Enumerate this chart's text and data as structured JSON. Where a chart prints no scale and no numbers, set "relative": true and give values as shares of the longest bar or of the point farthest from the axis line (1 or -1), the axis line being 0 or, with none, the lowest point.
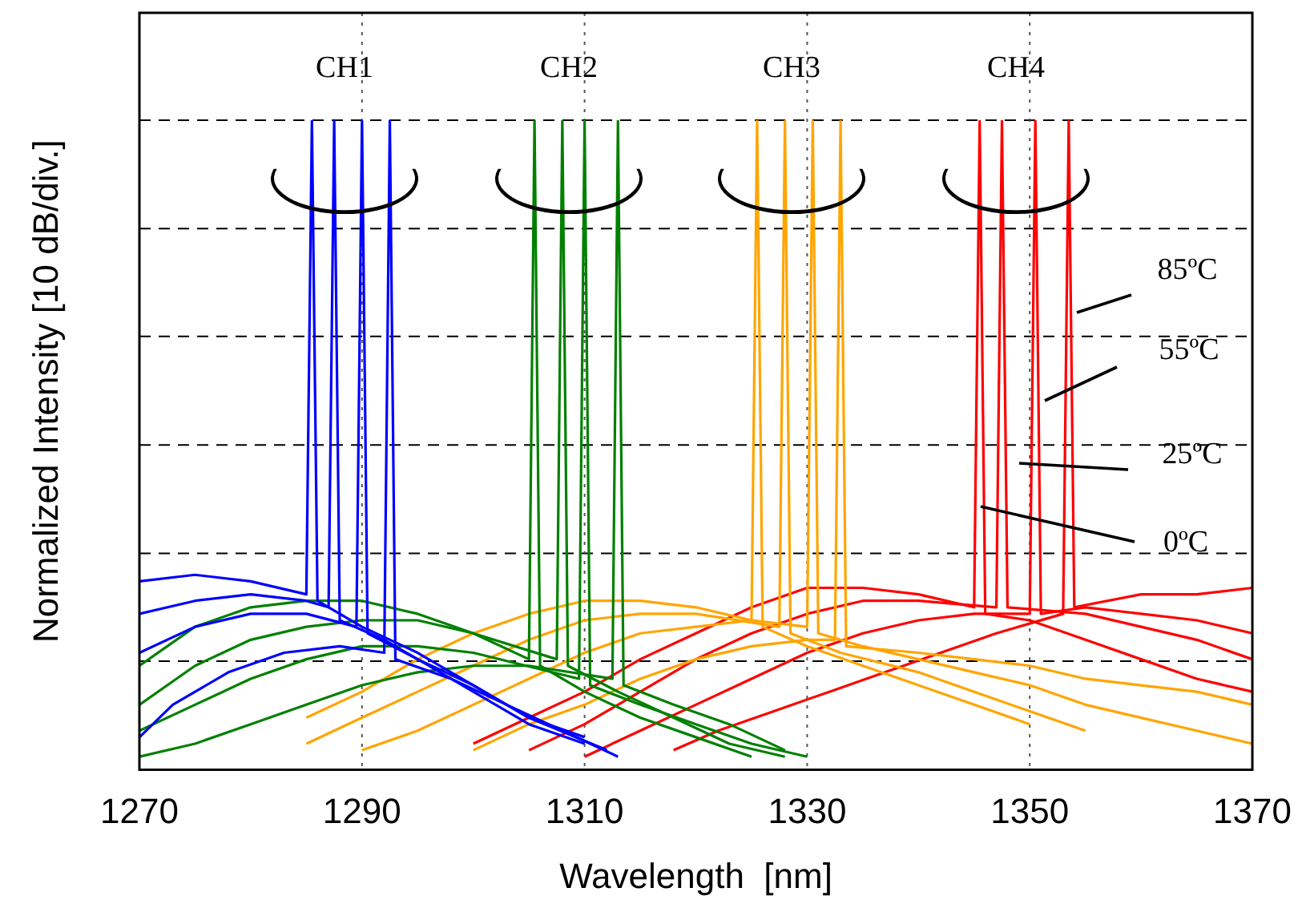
{
  "chart_data": {
    "type": "line",
    "relative": true,
    "xlabel": "Wavelength  [nm]",
    "ylabel": "Normalized Intensity [10 dB/div.]",
    "xlim": [
      1270,
      1370
    ],
    "xticks": [
      1270,
      1290,
      1310,
      1330,
      1350,
      1370
    ],
    "grid": "x",
    "legend": false,
    "marker": "none",
    "line_style": "solid",
    "ref_lines": [
      {
        "axis": "y",
        "value": 0.167,
        "line_style": "dashed",
        "color": "#000000"
      },
      {
        "axis": "y",
        "value": 0.333,
        "line_style": "dashed",
        "color": "#000000"
      },
      {
        "axis": "y",
        "value": 0.5,
        "line_style": "dashed",
        "color": "#000000"
      },
      {
        "axis": "y",
        "value": 0.667,
        "line_style": "dashed",
        "color": "#000000"
      },
      {
        "axis": "y",
        "value": 0.833,
        "line_style": "dashed",
        "color": "#000000"
      },
      {
        "axis": "y",
        "value": 1,
        "line_style": "dashed",
        "color": "#000000"
      }
    ],
    "annotations": [
      "CH1",
      "CH2",
      "CH3",
      "CH4",
      "85ºC",
      "55ºC",
      "25ºC",
      "0ºC"
    ],
    "series": [
      {
        "color": "#0000ff",
        "x": [
          1270,
          1275,
          1280,
          1285,
          1285.5,
          1286,
          1290,
          1295,
          1300,
          1305,
          1310
        ],
        "values": [
          0.29,
          0.3,
          0.29,
          0.27,
          1,
          0.26,
          0.22,
          0.18,
          0.13,
          0.08,
          0.05
        ]
      },
      {
        "color": "#0000ff",
        "x": [
          1270,
          1275,
          1280,
          1285,
          1287,
          1287.5,
          1288,
          1292,
          1296,
          1300,
          1305,
          1310
        ],
        "values": [
          0.24,
          0.26,
          0.27,
          0.26,
          0.25,
          1,
          0.23,
          0.2,
          0.16,
          0.12,
          0.07,
          0.04
        ]
      },
      {
        "color": "#0000ff",
        "x": [
          1270,
          1275,
          1280,
          1285,
          1289.5,
          1290,
          1290.5,
          1295,
          1300,
          1305,
          1312
        ],
        "values": [
          0.18,
          0.22,
          0.24,
          0.24,
          0.22,
          1,
          0.21,
          0.17,
          0.13,
          0.08,
          0.03
        ]
      },
      {
        "color": "#0000ff",
        "x": [
          1270,
          1273,
          1278,
          1283,
          1288,
          1292,
          1292.5,
          1293,
          1298,
          1303,
          1308,
          1313
        ],
        "values": [
          0.05,
          0.1,
          0.15,
          0.18,
          0.19,
          0.18,
          1,
          0.17,
          0.14,
          0.1,
          0.06,
          0.02
        ]
      },
      {
        "color": "#008000",
        "x": [
          1270,
          1275,
          1280,
          1285,
          1290,
          1295,
          1300,
          1305,
          1305.5,
          1306,
          1310,
          1315,
          1320,
          1325
        ],
        "values": [
          0.16,
          0.22,
          0.25,
          0.26,
          0.26,
          0.24,
          0.21,
          0.17,
          1,
          0.16,
          0.12,
          0.08,
          0.05,
          0.02
        ]
      },
      {
        "color": "#008000",
        "x": [
          1270,
          1275,
          1280,
          1285,
          1290,
          1295,
          1300,
          1307.5,
          1308,
          1308.5,
          1313,
          1318,
          1323,
          1328
        ],
        "values": [
          0.1,
          0.16,
          0.2,
          0.22,
          0.23,
          0.23,
          0.21,
          0.17,
          1,
          0.16,
          0.12,
          0.08,
          0.04,
          0.02
        ]
      },
      {
        "color": "#008000",
        "x": [
          1270,
          1275,
          1280,
          1285,
          1290,
          1295,
          1300,
          1309.5,
          1310,
          1310.5,
          1315,
          1320,
          1325,
          1330
        ],
        "values": [
          0.06,
          0.1,
          0.14,
          0.17,
          0.19,
          0.19,
          0.18,
          0.14,
          1,
          0.13,
          0.1,
          0.07,
          0.04,
          0.02
        ]
      },
      {
        "color": "#008000",
        "x": [
          1270,
          1275,
          1280,
          1285,
          1290,
          1295,
          1300,
          1305,
          1312.5,
          1313,
          1313.5,
          1318,
          1323,
          1328
        ],
        "values": [
          0.02,
          0.04,
          0.07,
          0.1,
          0.13,
          0.15,
          0.16,
          0.16,
          0.14,
          1,
          0.13,
          0.1,
          0.07,
          0.03
        ]
      },
      {
        "color": "#ffa500",
        "x": [
          1285,
          1290,
          1295,
          1300,
          1305,
          1310,
          1315,
          1320,
          1325,
          1325.5,
          1326,
          1330,
          1335,
          1340,
          1345,
          1350
        ],
        "values": [
          0.08,
          0.12,
          0.17,
          0.21,
          0.24,
          0.26,
          0.26,
          0.25,
          0.23,
          1,
          0.22,
          0.19,
          0.16,
          0.13,
          0.1,
          0.07
        ]
      },
      {
        "color": "#ffa500",
        "x": [
          1285,
          1290,
          1295,
          1300,
          1305,
          1310,
          1315,
          1320,
          1327.5,
          1328,
          1328.5,
          1333,
          1340,
          1345,
          1350,
          1355
        ],
        "values": [
          0.04,
          0.08,
          0.12,
          0.16,
          0.2,
          0.23,
          0.24,
          0.24,
          0.22,
          1,
          0.21,
          0.18,
          0.15,
          0.12,
          0.09,
          0.06
        ]
      },
      {
        "color": "#ffa500",
        "x": [
          1290,
          1295,
          1300,
          1305,
          1310,
          1315,
          1320,
          1325,
          1330,
          1330.5,
          1331,
          1335,
          1340,
          1345,
          1350,
          1355,
          1360,
          1365,
          1370
        ],
        "values": [
          0.03,
          0.06,
          0.1,
          0.14,
          0.18,
          0.21,
          0.22,
          0.23,
          0.22,
          1,
          0.21,
          0.19,
          0.17,
          0.15,
          0.13,
          0.1,
          0.08,
          0.06,
          0.04
        ]
      },
      {
        "color": "#ffa500",
        "x": [
          1300,
          1305,
          1310,
          1315,
          1320,
          1325,
          1330,
          1332.5,
          1333,
          1333.5,
          1340,
          1345,
          1350,
          1355,
          1360,
          1365,
          1370
        ],
        "values": [
          0.03,
          0.07,
          0.1,
          0.14,
          0.17,
          0.19,
          0.2,
          0.2,
          1,
          0.19,
          0.18,
          0.17,
          0.16,
          0.14,
          0.13,
          0.12,
          0.1
        ]
      },
      {
        "color": "#ff0000",
        "x": [
          1300,
          1305,
          1310,
          1315,
          1320,
          1325,
          1330,
          1335,
          1340,
          1345,
          1345.5,
          1346,
          1350,
          1355,
          1360,
          1365,
          1370
        ],
        "values": [
          0.04,
          0.08,
          0.12,
          0.17,
          0.21,
          0.25,
          0.28,
          0.28,
          0.27,
          0.25,
          1,
          0.24,
          0.23,
          0.2,
          0.17,
          0.14,
          0.12
        ]
      },
      {
        "color": "#ff0000",
        "x": [
          1305,
          1310,
          1315,
          1320,
          1325,
          1330,
          1335,
          1340,
          1347,
          1347.5,
          1348,
          1355,
          1360,
          1365,
          1370
        ],
        "values": [
          0.03,
          0.07,
          0.12,
          0.17,
          0.21,
          0.24,
          0.26,
          0.26,
          0.25,
          1,
          0.25,
          0.24,
          0.22,
          0.2,
          0.17
        ]
      },
      {
        "color": "#ff0000",
        "x": [
          1310,
          1315,
          1320,
          1325,
          1330,
          1335,
          1340,
          1345,
          1350,
          1350.5,
          1351,
          1355,
          1360,
          1365,
          1370
        ],
        "values": [
          0.02,
          0.06,
          0.1,
          0.14,
          0.18,
          0.21,
          0.23,
          0.24,
          0.24,
          1,
          0.24,
          0.25,
          0.24,
          0.23,
          0.21
        ]
      },
      {
        "color": "#ff0000",
        "x": [
          1318,
          1322,
          1327,
          1332,
          1337,
          1342,
          1347,
          1353,
          1353.5,
          1354,
          1360,
          1365,
          1370
        ],
        "values": [
          0.03,
          0.06,
          0.09,
          0.12,
          0.15,
          0.18,
          0.21,
          0.24,
          1,
          0.25,
          0.27,
          0.27,
          0.28
        ]
      }
    ]
  }
}
